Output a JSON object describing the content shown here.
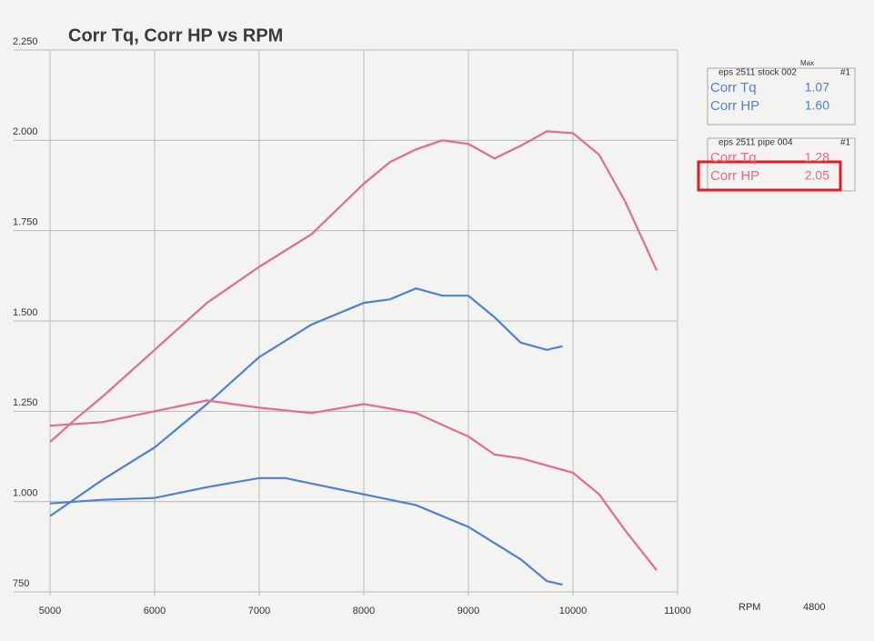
{
  "chart_data": {
    "type": "line",
    "title": "Corr Tq, Corr HP vs RPM",
    "x_label": "RPM",
    "x_note": "4800",
    "xlim": [
      5000,
      11000
    ],
    "xticks": [
      5000,
      6000,
      7000,
      8000,
      9000,
      10000,
      11000
    ],
    "ylim": [
      750,
      2250
    ],
    "yticks": [
      {
        "value": 2250,
        "label": "2.250"
      },
      {
        "value": 2000,
        "label": "2.000"
      },
      {
        "value": 1750,
        "label": "1.750"
      },
      {
        "value": 1500,
        "label": "1.500"
      },
      {
        "value": 1250,
        "label": "1.250"
      },
      {
        "value": 1000,
        "label": "1.000"
      },
      750
    ],
    "grid": true,
    "legend_max_label": "Max",
    "legend_groups": [
      {
        "header": "eps 2511 stock 002",
        "tag": "#1"
      },
      {
        "header": "eps 2511 pipe 004",
        "tag": "#1"
      }
    ],
    "series": [
      {
        "name": "Corr Tq",
        "color": "#4f7fd6",
        "max_label": "1.07",
        "x": [
          5000,
          5500,
          6000,
          6500,
          7000,
          7250,
          7500,
          8000,
          8500,
          9000,
          9500,
          9750,
          9900
        ],
        "values": [
          995,
          1005,
          1010,
          1040,
          1065,
          1065,
          1050,
          1020,
          990,
          930,
          840,
          780,
          770
        ]
      },
      {
        "name": "Corr HP",
        "color": "#4f7fd6",
        "max_label": "1.60",
        "x": [
          5000,
          5500,
          6000,
          6500,
          7000,
          7500,
          8000,
          8250,
          8500,
          8750,
          9000,
          9250,
          9500,
          9750,
          9900
        ],
        "values": [
          960,
          1060,
          1150,
          1270,
          1400,
          1490,
          1550,
          1560,
          1590,
          1570,
          1570,
          1510,
          1440,
          1420,
          1430
        ]
      },
      {
        "name": "Corr Tq",
        "color": "#e56b8a",
        "max_label": "1.28",
        "x": [
          5000,
          5500,
          6000,
          6500,
          7000,
          7500,
          8000,
          8500,
          9000,
          9250,
          9500,
          10000,
          10250,
          10500,
          10800
        ],
        "values": [
          1210,
          1220,
          1250,
          1280,
          1260,
          1245,
          1270,
          1245,
          1180,
          1130,
          1120,
          1080,
          1020,
          920,
          810
        ]
      },
      {
        "name": "Corr HP",
        "color": "#e56b8a",
        "max_label": "2.05",
        "x": [
          5000,
          5250,
          5500,
          6000,
          6500,
          7000,
          7500,
          8000,
          8250,
          8500,
          8750,
          9000,
          9250,
          9500,
          9750,
          10000,
          10250,
          10500,
          10800
        ],
        "values": [
          1165,
          1230,
          1290,
          1420,
          1550,
          1650,
          1740,
          1880,
          1940,
          1975,
          2000,
          1990,
          1950,
          1985,
          2025,
          2020,
          1960,
          1830,
          1640
        ]
      }
    ]
  }
}
